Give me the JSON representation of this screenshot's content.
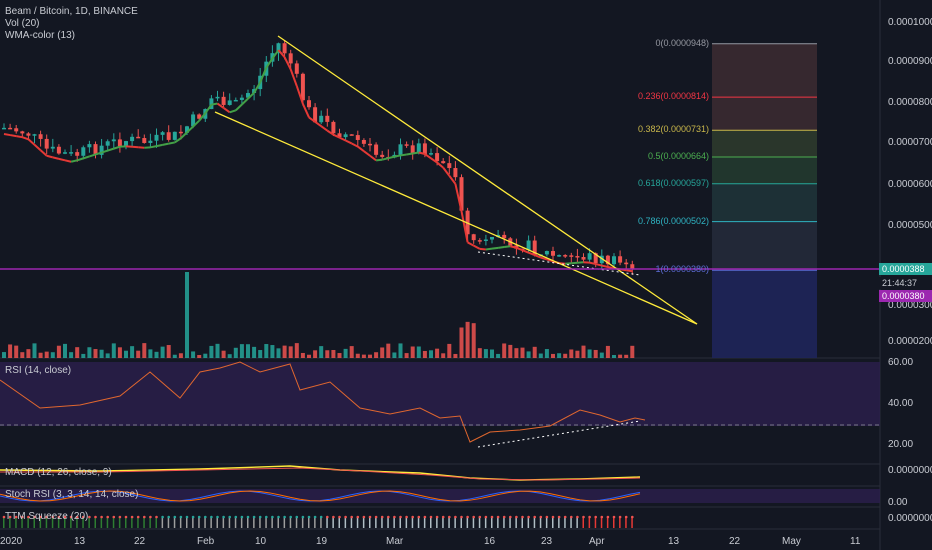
{
  "header": {
    "symbol_title": "Beam / Bitcoin, 1D, BINANCE",
    "indicators": [
      "Vol (20)",
      "WMA-color (13)"
    ]
  },
  "price_axis": {
    "labels": [
      "0.0001000",
      "0.0000900",
      "0.0000800",
      "0.0000700",
      "0.0000600",
      "0.0000500",
      "0.0000300",
      "0.0000200"
    ],
    "badges": {
      "last_price": "0.0000388",
      "countdown": "21:44:37",
      "line_price": "0.0000380"
    }
  },
  "fib": {
    "levels": [
      {
        "ratio": 0,
        "label": "0(0.0000948)",
        "price": 9.48e-05,
        "color": "#9598a1"
      },
      {
        "ratio": 0.236,
        "label": "0.236(0.0000814)",
        "price": 8.14e-05,
        "color": "#f23645"
      },
      {
        "ratio": 0.382,
        "label": "0.382(0.0000731)",
        "price": 7.31e-05,
        "color": "#c9b74b"
      },
      {
        "ratio": 0.5,
        "label": "0.5(0.0000664)",
        "price": 6.64e-05,
        "color": "#4caf50"
      },
      {
        "ratio": 0.618,
        "label": "0.618(0.0000597)",
        "price": 5.97e-05,
        "color": "#26a69a"
      },
      {
        "ratio": 0.786,
        "label": "0.786(0.0000502)",
        "price": 5.02e-05,
        "color": "#2fb3c2"
      },
      {
        "ratio": 1,
        "label": "1(0.0000380)",
        "price": 3.8e-05,
        "color": "#5d6dd6"
      }
    ]
  },
  "rsi": {
    "title": "RSI (14, close)",
    "axis": [
      "60.00",
      "40.00",
      "20.00"
    ]
  },
  "macd": {
    "title": "MACD (12, 26, close, 9)",
    "axis": "0.0000000"
  },
  "stoch": {
    "title": "Stoch RSI (3, 3, 14, 14, close)",
    "axis": "0.00"
  },
  "ttm": {
    "title": "TTM Squeeze (20)",
    "axis": "0.0000000"
  },
  "time_axis": [
    "2020",
    "13",
    "22",
    "Feb",
    "10",
    "19",
    "Mar",
    "16",
    "23",
    "Apr",
    "13",
    "22",
    "May",
    "11"
  ],
  "colors": {
    "up": "#26a69a",
    "down": "#ef5350",
    "wma_red": "#e53935",
    "wma_green": "#43a047",
    "trendline": "#ffeb3b",
    "horizontal": "#9c27b0",
    "rsi_band": "#2a1f4a"
  }
}
